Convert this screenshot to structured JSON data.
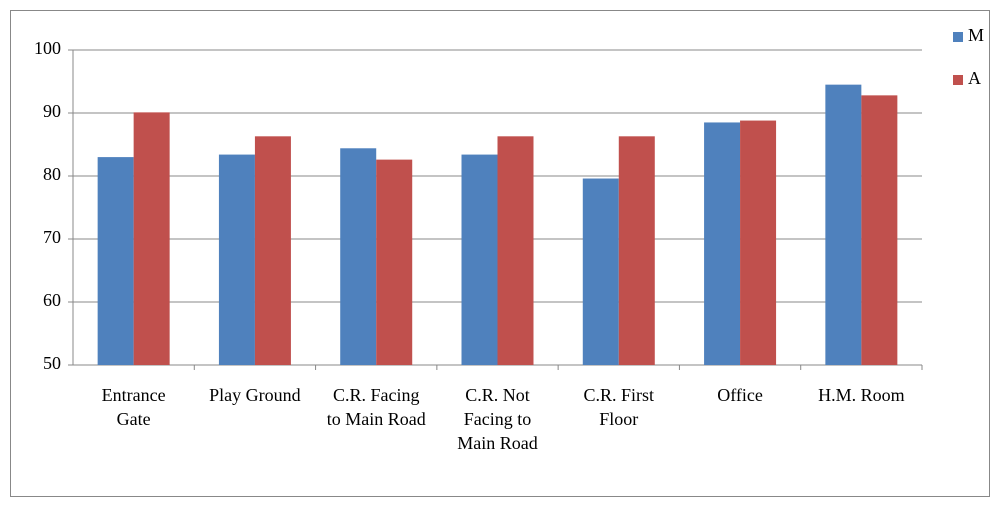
{
  "chart_data": {
    "type": "bar",
    "categories": [
      "Entrance Gate",
      "Play Ground",
      "C.R. Facing to Main Road",
      "C.R. Not Facing to Main Road",
      "C.R. First Floor",
      "Office",
      "H.M. Room"
    ],
    "series": [
      {
        "name": "M",
        "color": "#4f81bd",
        "values": [
          83,
          83.4,
          84.4,
          83.4,
          79.6,
          88.5,
          94.5
        ]
      },
      {
        "name": "A",
        "color": "#c0504d",
        "values": [
          90.1,
          86.3,
          82.6,
          86.3,
          86.3,
          88.8,
          92.8
        ]
      }
    ],
    "ylim": [
      50,
      100
    ],
    "yticks": [
      50,
      60,
      70,
      80,
      90,
      100
    ],
    "grid": true,
    "legend": "right"
  }
}
